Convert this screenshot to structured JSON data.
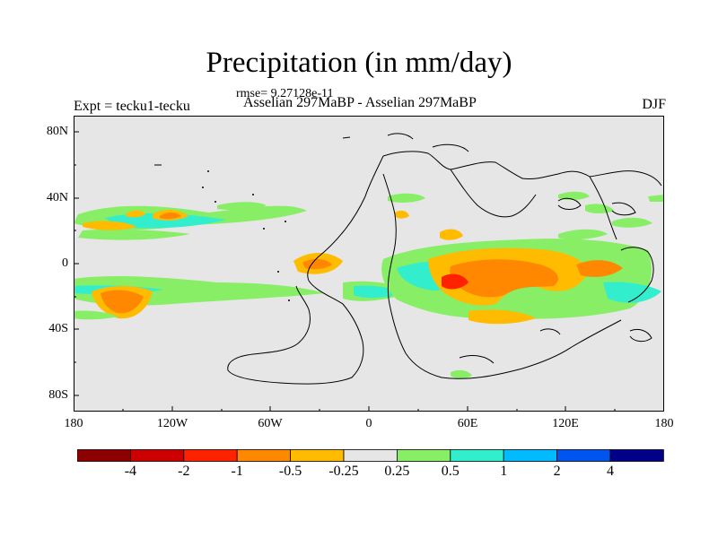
{
  "figure": {
    "title": "Precipitation (in mm/day)",
    "rmse": "rmse= 9.27128e-11",
    "left_label": "Expt = tecku1-tecku",
    "center_label": "Asselian 297MaBP - Asselian 297MaBP",
    "right_label": "DJF"
  },
  "axes": {
    "lat_ticks": [
      "80N",
      "40N",
      "0",
      "40S",
      "80S"
    ],
    "lon_ticks": [
      "180",
      "120W",
      "60W",
      "0",
      "60E",
      "120E",
      "180"
    ]
  },
  "colorbar": {
    "labels": [
      "-4",
      "-2",
      "-1",
      "-0.5",
      "-0.25",
      "0.25",
      "0.5",
      "1",
      "2",
      "4"
    ],
    "colors": [
      "#8c0000",
      "#cc0000",
      "#ff2200",
      "#ff8800",
      "#ffbb00",
      "#e6e6e6",
      "#88ee66",
      "#33eecc",
      "#00bbff",
      "#0055ee",
      "#000088"
    ]
  },
  "map_colors": {
    "background": "#e6e6e6",
    "coastline": "#000000"
  }
}
